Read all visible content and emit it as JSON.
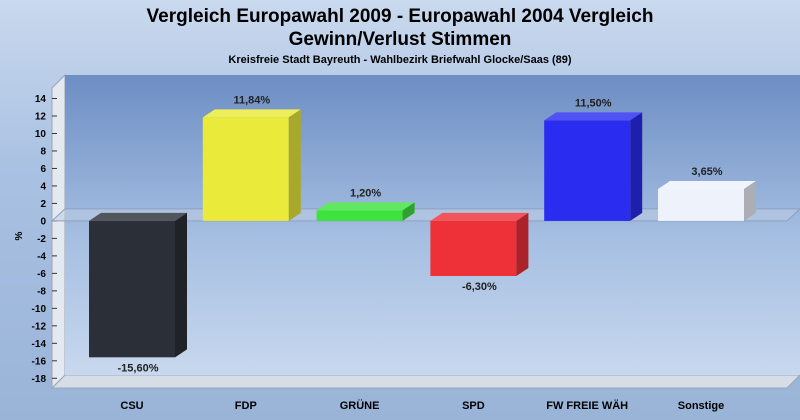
{
  "chart_data": {
    "type": "bar",
    "title_line1": "Vergleich Europawahl 2009 - Europawahl 2004 Vergleich",
    "title_line2": "Gewinn/Verlust Stimmen",
    "subtitle": "Kreisfreie Stadt Bayreuth - Wahlbezirk Briefwahl Glocke/Saas (89)",
    "ylabel": "%",
    "xlabel": "",
    "ylim": [
      -18,
      14
    ],
    "yticks": [
      14,
      12,
      10,
      8,
      6,
      4,
      2,
      0,
      -2,
      -4,
      -6,
      -8,
      -10,
      -12,
      -14,
      -16,
      -18
    ],
    "grid": false,
    "categories": [
      "CSU",
      "FDP",
      "GRÜNE",
      "SPD",
      "FW FREIE WÄH",
      "Sonstige"
    ],
    "values": [
      -15.6,
      11.84,
      1.2,
      -6.3,
      11.5,
      3.65
    ],
    "value_labels": [
      "-15,60%",
      "11,84%",
      "1,20%",
      "-6,30%",
      "11,50%",
      "3,65%"
    ],
    "colors": [
      "#2b3038",
      "#eaea3a",
      "#3ee23e",
      "#ee3038",
      "#2a2cf0",
      "#eef2fb"
    ]
  }
}
